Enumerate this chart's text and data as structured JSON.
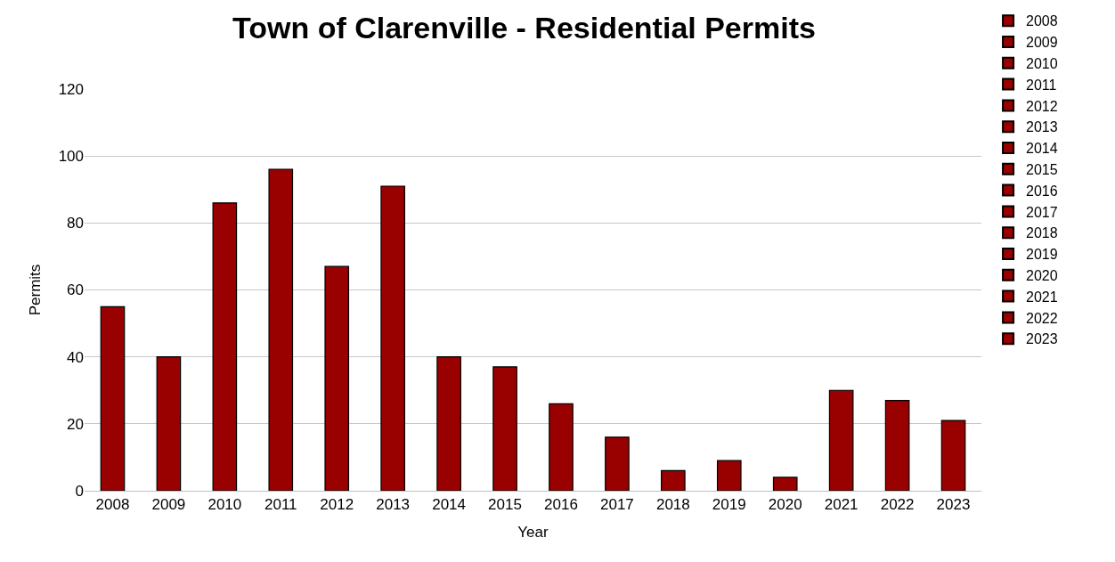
{
  "chart_data": {
    "type": "bar",
    "title": "Town of Clarenville - Residential Permits",
    "xlabel": "Year",
    "ylabel": "Permits",
    "categories": [
      "2008",
      "2009",
      "2010",
      "2011",
      "2012",
      "2013",
      "2014",
      "2015",
      "2016",
      "2017",
      "2018",
      "2019",
      "2020",
      "2021",
      "2022",
      "2023"
    ],
    "stacked": true,
    "series": [
      {
        "name": "2008",
        "color": "#990000",
        "values": [
          55,
          null,
          null,
          null,
          null,
          null,
          null,
          null,
          null,
          null,
          null,
          null,
          null,
          null,
          null,
          null
        ]
      },
      {
        "name": "2009",
        "color": "#990000",
        "values": [
          null,
          40,
          null,
          null,
          null,
          null,
          null,
          null,
          null,
          null,
          null,
          null,
          null,
          null,
          null,
          null
        ]
      },
      {
        "name": "2010",
        "color": "#990000",
        "values": [
          null,
          null,
          86,
          null,
          null,
          null,
          null,
          null,
          null,
          null,
          null,
          null,
          null,
          null,
          null,
          null
        ]
      },
      {
        "name": "2011",
        "color": "#990000",
        "values": [
          null,
          null,
          null,
          96,
          null,
          null,
          null,
          null,
          null,
          null,
          null,
          null,
          null,
          null,
          null,
          null
        ]
      },
      {
        "name": "2012",
        "color": "#990000",
        "values": [
          null,
          null,
          null,
          null,
          67,
          null,
          null,
          null,
          null,
          null,
          null,
          null,
          null,
          null,
          null,
          null
        ]
      },
      {
        "name": "2013",
        "color": "#990000",
        "values": [
          null,
          null,
          null,
          null,
          null,
          91,
          null,
          null,
          null,
          null,
          null,
          null,
          null,
          null,
          null,
          null
        ]
      },
      {
        "name": "2014",
        "color": "#990000",
        "values": [
          null,
          null,
          null,
          null,
          null,
          null,
          40,
          null,
          null,
          null,
          null,
          null,
          null,
          null,
          null,
          null
        ]
      },
      {
        "name": "2015",
        "color": "#990000",
        "values": [
          null,
          null,
          null,
          null,
          null,
          null,
          null,
          37,
          null,
          null,
          null,
          null,
          null,
          null,
          null,
          null
        ]
      },
      {
        "name": "2016",
        "color": "#990000",
        "values": [
          null,
          null,
          null,
          null,
          null,
          null,
          null,
          null,
          26,
          null,
          null,
          null,
          null,
          null,
          null,
          null
        ]
      },
      {
        "name": "2017",
        "color": "#990000",
        "values": [
          null,
          null,
          null,
          null,
          null,
          null,
          null,
          null,
          null,
          16,
          null,
          null,
          null,
          null,
          null,
          null
        ]
      },
      {
        "name": "2018",
        "color": "#990000",
        "values": [
          null,
          null,
          null,
          null,
          null,
          null,
          null,
          null,
          null,
          null,
          6,
          null,
          null,
          null,
          null,
          null
        ]
      },
      {
        "name": "2019",
        "color": "#990000",
        "values": [
          null,
          null,
          null,
          null,
          null,
          null,
          null,
          null,
          null,
          null,
          null,
          9,
          null,
          null,
          null,
          null
        ]
      },
      {
        "name": "2020",
        "color": "#990000",
        "values": [
          null,
          null,
          null,
          null,
          null,
          null,
          null,
          null,
          null,
          null,
          null,
          null,
          4,
          null,
          null,
          null
        ]
      },
      {
        "name": "2021",
        "color": "#990000",
        "values": [
          null,
          null,
          null,
          null,
          null,
          null,
          null,
          null,
          null,
          null,
          null,
          null,
          null,
          30,
          null,
          null
        ]
      },
      {
        "name": "2022",
        "color": "#990000",
        "values": [
          null,
          null,
          null,
          null,
          null,
          null,
          null,
          null,
          null,
          null,
          null,
          null,
          null,
          null,
          27,
          null
        ]
      },
      {
        "name": "2023",
        "color": "#990000",
        "values": [
          null,
          null,
          null,
          null,
          null,
          null,
          null,
          null,
          null,
          null,
          null,
          null,
          null,
          null,
          null,
          21
        ]
      }
    ],
    "ylim": [
      0,
      120
    ],
    "yticks": [
      0,
      20,
      40,
      60,
      80,
      100,
      120
    ],
    "grid": "y",
    "legend": "right"
  }
}
